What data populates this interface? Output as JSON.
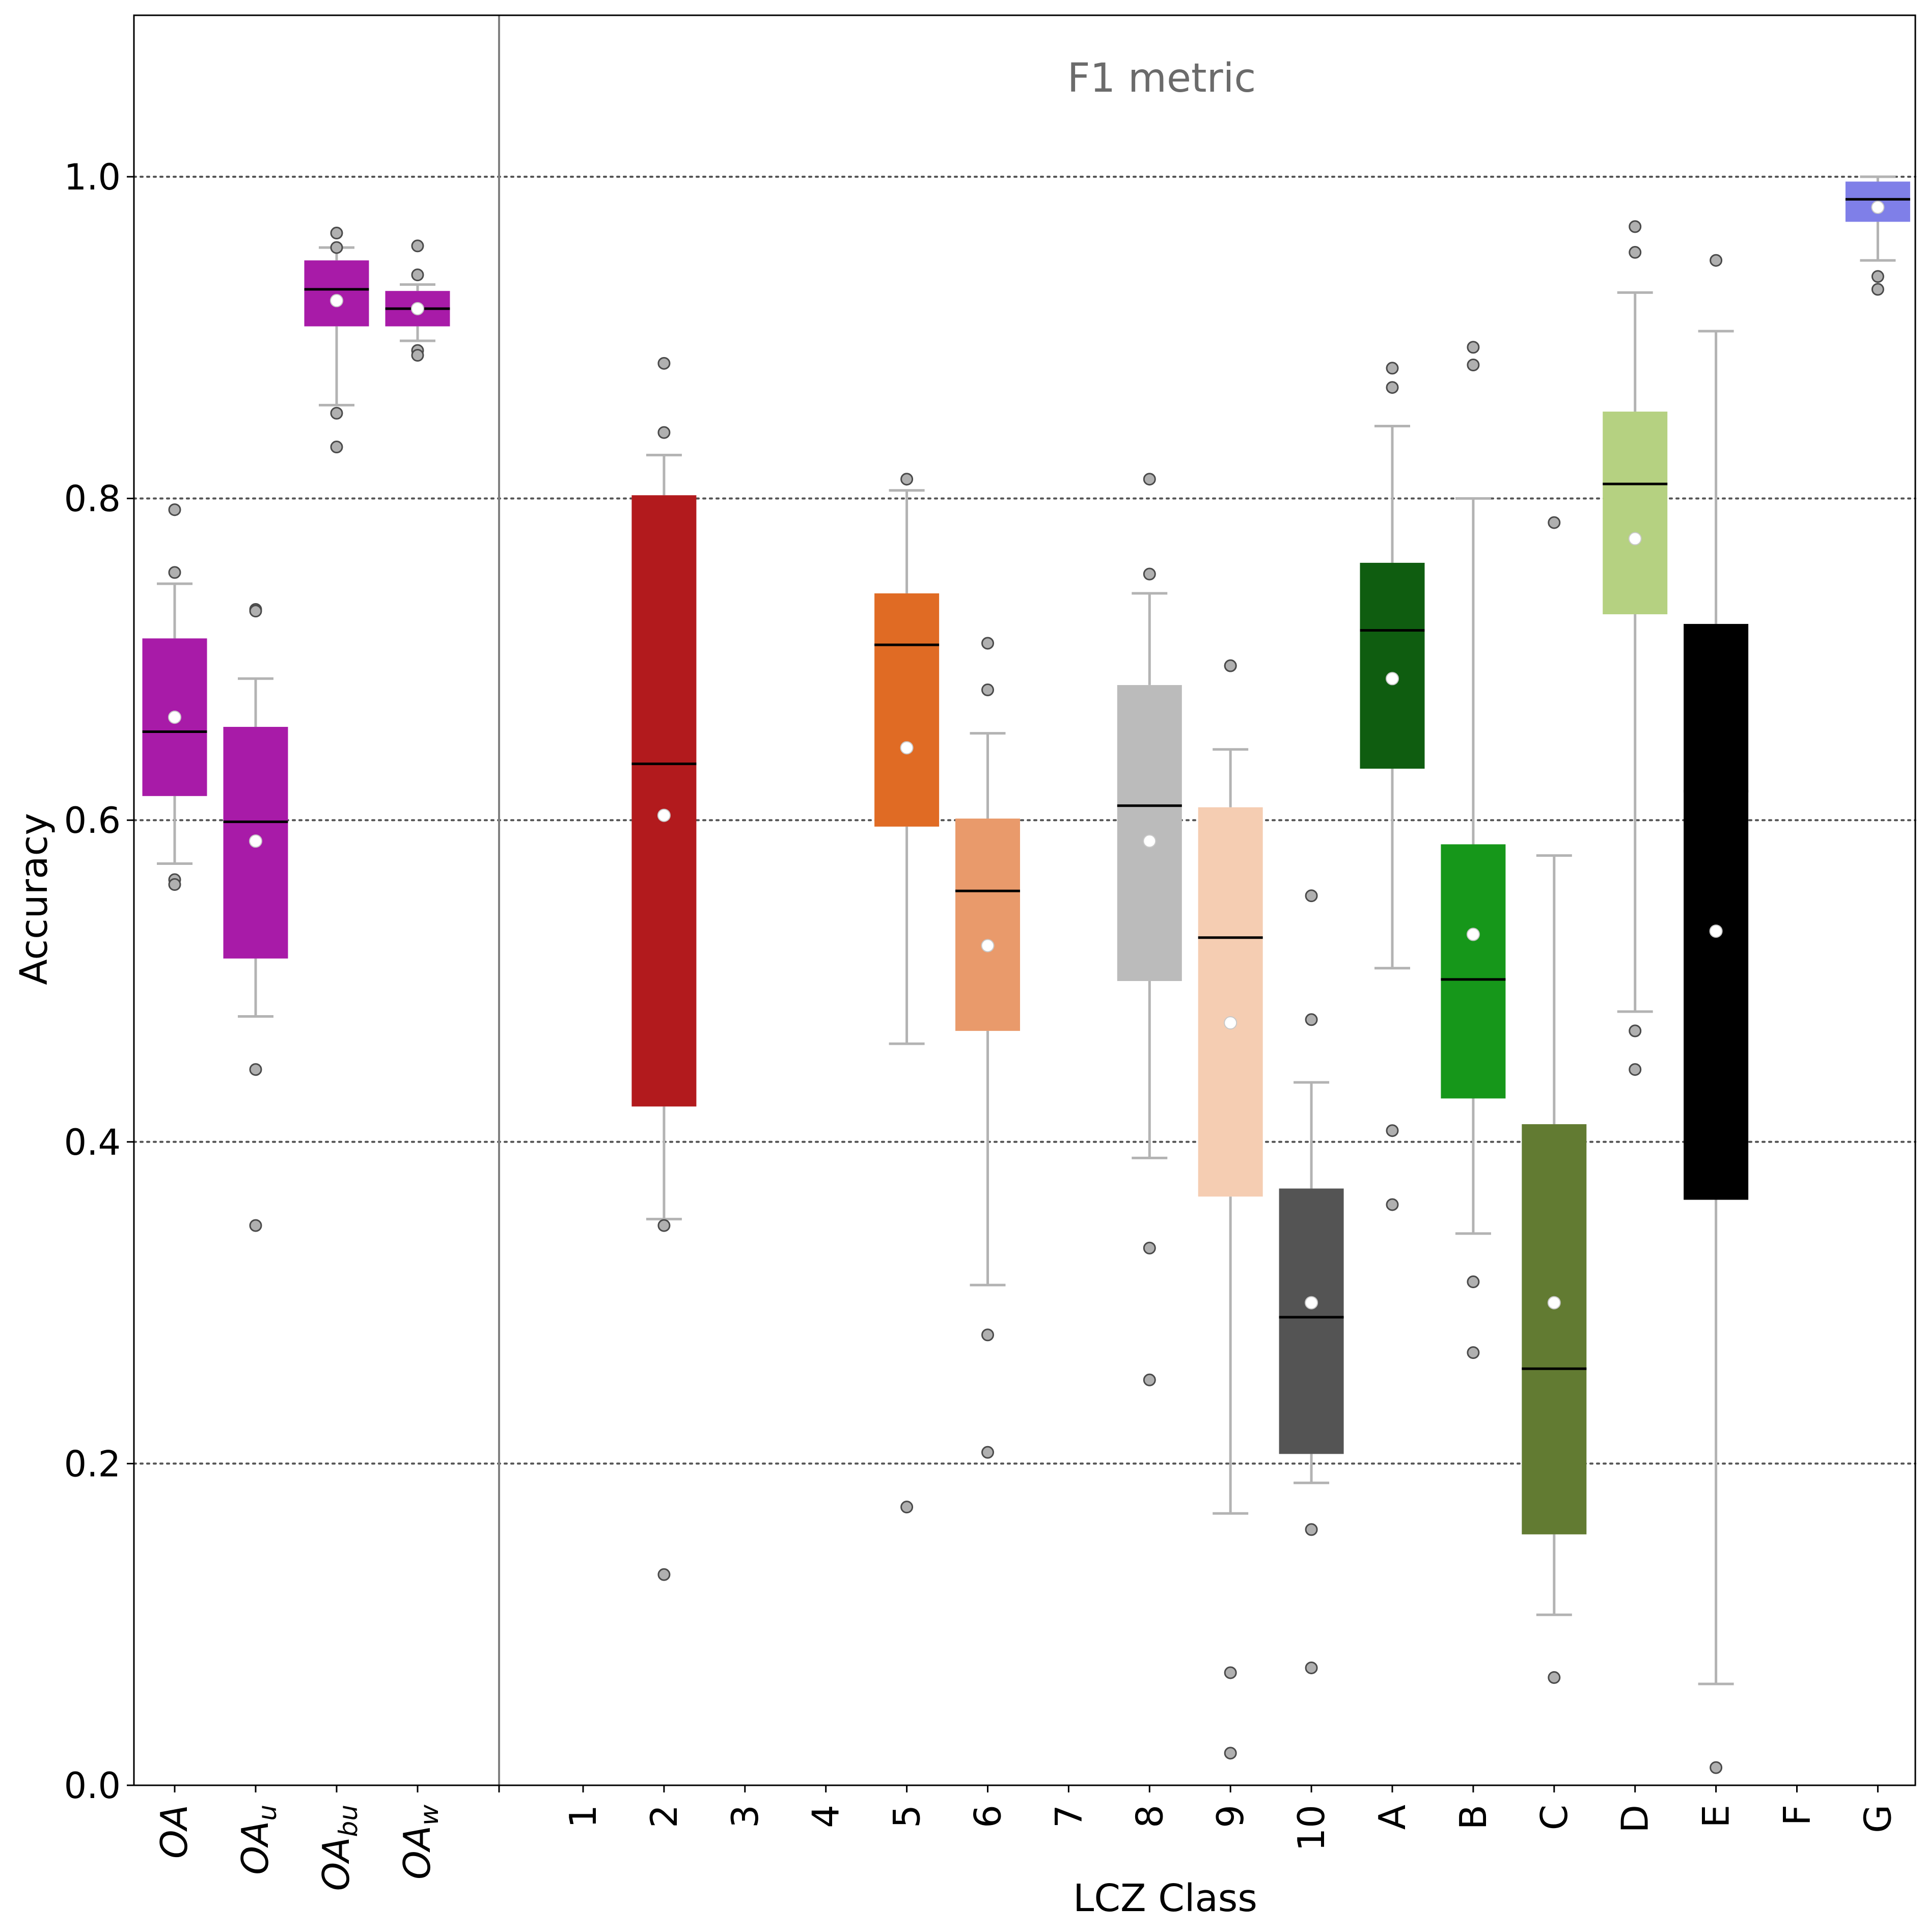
{
  "chart_data": {
    "type": "box",
    "annotation": "F1 metric",
    "xlabel": "LCZ Class",
    "ylabel": "Accuracy",
    "ylim": [
      0.0,
      1.1
    ],
    "yticks": [
      0.0,
      0.2,
      0.4,
      0.6,
      0.8,
      1.0
    ],
    "ytick_labels": [
      "0.0",
      "0.2",
      "0.4",
      "0.6",
      "0.8",
      "1.0"
    ],
    "grid_y": [
      0.2,
      0.4,
      0.6,
      0.8,
      1.0
    ],
    "grid_style": "dotted",
    "groups": [
      {
        "base": "OA",
        "sub": "",
        "color": "#a81ba8",
        "whislo": 0.573,
        "q1": 0.615,
        "med": 0.655,
        "q3": 0.713,
        "whishi": 0.747,
        "mean": 0.664,
        "fliers": [
          0.793,
          0.754,
          0.563,
          0.56
        ]
      },
      {
        "base": "OA",
        "sub": "u",
        "color": "#a81ba8",
        "whislo": 0.478,
        "q1": 0.514,
        "med": 0.599,
        "q3": 0.658,
        "whishi": 0.688,
        "mean": 0.587,
        "fliers": [
          0.731,
          0.73,
          0.445,
          0.348
        ]
      },
      {
        "base": "OA",
        "sub": "bu",
        "color": "#a81ba8",
        "whislo": 0.858,
        "q1": 0.907,
        "med": 0.93,
        "q3": 0.948,
        "whishi": 0.956,
        "mean": 0.923,
        "fliers": [
          0.965,
          0.956,
          0.853,
          0.832
        ]
      },
      {
        "base": "OA",
        "sub": "w",
        "color": "#a81ba8",
        "whislo": 0.898,
        "q1": 0.907,
        "med": 0.918,
        "q3": 0.929,
        "whishi": 0.933,
        "mean": 0.918,
        "fliers": [
          0.957,
          0.939,
          0.892,
          0.889
        ]
      }
    ],
    "categories": [
      "1",
      "2",
      "3",
      "4",
      "5",
      "6",
      "7",
      "8",
      "9",
      "10",
      "A",
      "B",
      "C",
      "D",
      "E",
      "F",
      "G"
    ],
    "series": [
      {
        "category": "1",
        "color": "",
        "stats": null
      },
      {
        "category": "2",
        "color": "#b21a1d",
        "stats": {
          "whislo": 0.352,
          "q1": 0.422,
          "med": 0.635,
          "q3": 0.802,
          "whishi": 0.827,
          "mean": 0.603,
          "fliers": [
            0.884,
            0.841,
            0.348,
            0.131
          ]
        }
      },
      {
        "category": "3",
        "color": "",
        "stats": null
      },
      {
        "category": "4",
        "color": "",
        "stats": null
      },
      {
        "category": "5",
        "color": "#e06b24",
        "stats": {
          "whislo": 0.461,
          "q1": 0.596,
          "med": 0.709,
          "q3": 0.741,
          "whishi": 0.805,
          "mean": 0.645,
          "fliers": [
            0.812,
            0.173
          ]
        }
      },
      {
        "category": "6",
        "color": "#e99a6b",
        "stats": {
          "whislo": 0.311,
          "q1": 0.469,
          "med": 0.556,
          "q3": 0.601,
          "whishi": 0.654,
          "mean": 0.522,
          "fliers": [
            0.71,
            0.681,
            0.28,
            0.207
          ]
        }
      },
      {
        "category": "7",
        "color": "",
        "stats": null
      },
      {
        "category": "8",
        "color": "#bbbbbb",
        "stats": {
          "whislo": 0.39,
          "q1": 0.5,
          "med": 0.609,
          "q3": 0.684,
          "whishi": 0.741,
          "mean": 0.587,
          "fliers": [
            0.812,
            0.753,
            0.334,
            0.252
          ]
        }
      },
      {
        "category": "9",
        "color": "#f5cdb2",
        "stats": {
          "whislo": 0.169,
          "q1": 0.366,
          "med": 0.527,
          "q3": 0.608,
          "whishi": 0.644,
          "mean": 0.474,
          "fliers": [
            0.696,
            0.696,
            0.07,
            0.02
          ]
        }
      },
      {
        "category": "10",
        "color": "#545454",
        "stats": {
          "whislo": 0.188,
          "q1": 0.206,
          "med": 0.291,
          "q3": 0.371,
          "whishi": 0.437,
          "mean": 0.3,
          "fliers": [
            0.553,
            0.476,
            0.159,
            0.073
          ]
        }
      },
      {
        "category": "A",
        "color": "#0f5d10",
        "stats": {
          "whislo": 0.508,
          "q1": 0.632,
          "med": 0.718,
          "q3": 0.76,
          "whishi": 0.845,
          "mean": 0.688,
          "fliers": [
            0.881,
            0.869,
            0.407,
            0.361
          ]
        }
      },
      {
        "category": "B",
        "color": "#16971a",
        "stats": {
          "whislo": 0.343,
          "q1": 0.427,
          "med": 0.501,
          "q3": 0.585,
          "whishi": 0.8,
          "mean": 0.529,
          "fliers": [
            0.894,
            0.883,
            0.313,
            0.269
          ]
        }
      },
      {
        "category": "C",
        "color": "#627b32",
        "stats": {
          "whislo": 0.106,
          "q1": 0.156,
          "med": 0.259,
          "q3": 0.411,
          "whishi": 0.578,
          "mean": 0.3,
          "fliers": [
            0.785,
            0.067
          ]
        }
      },
      {
        "category": "D",
        "color": "#b5d181",
        "stats": {
          "whislo": 0.481,
          "q1": 0.728,
          "med": 0.809,
          "q3": 0.854,
          "whishi": 0.928,
          "mean": 0.775,
          "fliers": [
            0.969,
            0.953,
            0.469,
            0.445
          ]
        }
      },
      {
        "category": "E",
        "color": "#000000",
        "stats": {
          "whislo": 0.063,
          "q1": 0.364,
          "med": 0.618,
          "q3": 0.722,
          "whishi": 0.904,
          "mean": 0.531,
          "fliers": [
            0.948,
            0.011
          ]
        }
      },
      {
        "category": "F",
        "color": "",
        "stats": null
      },
      {
        "category": "G",
        "color": "#7f7fe8",
        "stats": {
          "whislo": 0.948,
          "q1": 0.972,
          "med": 0.986,
          "q3": 0.997,
          "whishi": 1.0,
          "mean": 0.981,
          "fliers": [
            0.938,
            0.93
          ]
        }
      }
    ]
  }
}
